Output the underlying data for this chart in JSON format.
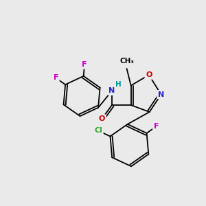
{
  "bg_color": "#eaeaea",
  "bond_color": "#000000",
  "atom_colors": {
    "F": "#cc00cc",
    "Cl": "#33aa33",
    "N": "#2222cc",
    "O": "#cc0000",
    "H": "#009999",
    "C": "#000000"
  }
}
